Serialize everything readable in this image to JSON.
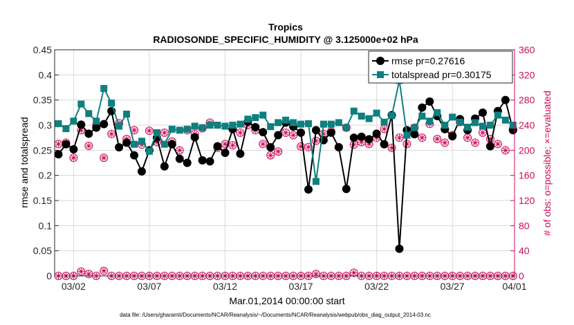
{
  "chart_data": {
    "type": "line",
    "title": "Tropics",
    "subtitle": "RADIOSONDE_SPECIFIC_HUMIDITY @ 3.125000e+02 hPa",
    "xlabel": "Mar.01,2014 00:00:00 start",
    "ylabel": "rmse and totalspread",
    "y2label": "# of obs: o=possible; ×=evaluated",
    "footnote": "data file: /Users/gharamti/Documents/NCAR/Reanalysis/~/Documents/NCAR/Reanalysis/webpub/obs_diag_output_2014-03.nc",
    "xlim": [
      0.75,
      31.1
    ],
    "ylim": [
      0,
      0.45
    ],
    "y2lim": [
      0,
      360
    ],
    "x_ticks": [
      2,
      7,
      12,
      17,
      22,
      27,
      32
    ],
    "x_tick_labels": [
      "03/02",
      "03/07",
      "03/12",
      "03/17",
      "03/22",
      "03/27",
      "04/01"
    ],
    "y_ticks": [
      0,
      0.05,
      0.1,
      0.15,
      0.2,
      0.25,
      0.3,
      0.35,
      0.4,
      0.45
    ],
    "y_tick_labels": [
      "0",
      "0.05",
      "0.1",
      "0.15",
      "0.2",
      "0.25",
      "0.3",
      "0.35",
      "0.4",
      "0.45"
    ],
    "y2_ticks": [
      0,
      40,
      80,
      120,
      160,
      200,
      240,
      280,
      320,
      360
    ],
    "y2_tick_labels": [
      "0",
      "40",
      "80",
      "120",
      "160",
      "200",
      "240",
      "280",
      "320",
      "360"
    ],
    "legend_position": "top-right",
    "colors": {
      "rmse": "#000000",
      "spread": "#0f7f7f",
      "obs": "#cc0a5a",
      "grid": "#dadada"
    },
    "series": [
      {
        "name": "rmse",
        "legend": "rmse pr=0.27616",
        "x": [
          1.0,
          1.5,
          2.0,
          2.5,
          3.0,
          3.5,
          4.0,
          4.5,
          5.0,
          5.5,
          6.0,
          6.5,
          7.0,
          7.5,
          8.0,
          8.5,
          9.0,
          9.5,
          10.0,
          10.5,
          11.0,
          11.5,
          12.0,
          12.5,
          13.0,
          13.5,
          14.0,
          14.5,
          15.0,
          15.5,
          16.0,
          16.5,
          17.0,
          17.5,
          18.0,
          18.5,
          19.0,
          19.5,
          20.0,
          20.5,
          21.0,
          21.5,
          22.0,
          22.5,
          23.0,
          23.5,
          24.0,
          24.5,
          25.0,
          25.5,
          26.0,
          26.5,
          27.0,
          27.5,
          28.0,
          28.5,
          29.0,
          29.5,
          30.0,
          30.5,
          31.0
        ],
        "values": [
          0.242,
          0.262,
          0.252,
          0.301,
          0.283,
          0.295,
          0.302,
          0.328,
          0.256,
          0.265,
          0.24,
          0.208,
          0.25,
          0.275,
          0.218,
          0.262,
          0.233,
          0.225,
          0.276,
          0.23,
          0.228,
          0.258,
          0.245,
          0.292,
          0.243,
          0.307,
          0.296,
          0.286,
          0.256,
          0.28,
          0.305,
          0.297,
          0.285,
          0.172,
          0.29,
          0.27,
          0.285,
          0.256,
          0.173,
          0.275,
          0.277,
          0.272,
          0.283,
          0.262,
          0.32,
          0.054,
          0.29,
          0.282,
          0.335,
          0.347,
          0.318,
          0.292,
          0.278,
          0.312,
          0.29,
          0.313,
          0.325,
          0.258,
          0.328,
          0.35,
          0.29
        ]
      },
      {
        "name": "totalspread",
        "legend": "totalspread pr=0.30175",
        "x": [
          1.0,
          1.5,
          2.0,
          2.5,
          3.0,
          3.5,
          4.0,
          4.5,
          5.0,
          5.5,
          6.0,
          6.5,
          7.0,
          7.5,
          8.0,
          8.5,
          9.0,
          9.5,
          10.0,
          10.5,
          11.0,
          11.5,
          12.0,
          12.5,
          13.0,
          13.5,
          14.0,
          14.5,
          15.0,
          15.5,
          16.0,
          16.5,
          17.0,
          17.5,
          18.0,
          18.5,
          19.0,
          19.5,
          20.0,
          20.5,
          21.0,
          21.5,
          22.0,
          22.5,
          23.0,
          23.5,
          24.0,
          24.5,
          25.0,
          25.5,
          26.0,
          26.5,
          27.0,
          27.5,
          28.0,
          28.5,
          29.0,
          29.5,
          30.0,
          30.5,
          31.0
        ],
        "values": [
          0.303,
          0.293,
          0.308,
          0.342,
          0.323,
          0.308,
          0.373,
          0.344,
          0.298,
          0.322,
          0.262,
          0.268,
          0.248,
          0.285,
          0.262,
          0.292,
          0.29,
          0.292,
          0.298,
          0.295,
          0.3,
          0.3,
          0.298,
          0.3,
          0.302,
          0.312,
          0.315,
          0.32,
          0.297,
          0.305,
          0.31,
          0.305,
          0.302,
          0.303,
          0.188,
          0.302,
          0.302,
          0.305,
          0.295,
          0.328,
          0.318,
          0.313,
          0.324,
          0.306,
          0.319,
          0.389,
          0.28,
          0.295,
          0.318,
          0.308,
          0.325,
          0.3,
          0.316,
          0.306,
          0.296,
          0.305,
          0.298,
          0.3,
          0.32,
          0.31,
          0.3
        ]
      },
      {
        "name": "obs_possible",
        "x": [
          1.0,
          1.5,
          2.0,
          2.5,
          3.0,
          3.5,
          4.0,
          4.5,
          5.0,
          5.5,
          6.0,
          6.5,
          7.0,
          7.5,
          8.0,
          8.5,
          9.0,
          9.5,
          10.0,
          10.5,
          11.0,
          11.5,
          12.0,
          12.5,
          13.0,
          13.5,
          14.0,
          14.5,
          15.0,
          15.5,
          16.0,
          16.5,
          17.0,
          17.5,
          18.0,
          18.5,
          19.0,
          19.5,
          20.0,
          20.5,
          21.0,
          21.5,
          22.0,
          22.5,
          23.0,
          23.5,
          24.0,
          24.5,
          25.0,
          25.5,
          26.0,
          26.5,
          27.0,
          27.5,
          28.0,
          28.5,
          29.0,
          29.5,
          30.0,
          30.5,
          31.0
        ],
        "values": [
          210,
          212,
          188,
          232,
          207,
          240,
          188,
          226,
          243,
          218,
          232,
          209,
          231,
          213,
          228,
          214,
          200,
          232,
          226,
          235,
          244,
          204,
          210,
          208,
          228,
          240,
          232,
          210,
          192,
          198,
          228,
          224,
          206,
          205,
          215,
          226,
          230,
          205,
          236,
          209,
          213,
          210,
          220,
          234,
          204,
          220,
          210,
          236,
          220,
          242,
          218,
          212,
          224,
          245,
          220,
          212,
          228,
          218,
          210,
          200,
          234
        ]
      },
      {
        "name": "obs_evaluated",
        "x": [
          1.0,
          1.5,
          2.0,
          2.5,
          3.0,
          3.5,
          4.0,
          4.5,
          5.0,
          5.5,
          6.0,
          6.5,
          7.0,
          7.5,
          8.0,
          8.5,
          9.0,
          9.5,
          10.0,
          10.5,
          11.0,
          11.5,
          12.0,
          12.5,
          13.0,
          13.5,
          14.0,
          14.5,
          15.0,
          15.5,
          16.0,
          16.5,
          17.0,
          17.5,
          18.0,
          18.5,
          19.0,
          19.5,
          20.0,
          20.5,
          21.0,
          21.5,
          22.0,
          22.5,
          23.0,
          23.5,
          24.0,
          24.5,
          25.0,
          25.5,
          26.0,
          26.5,
          27.0,
          27.5,
          28.0,
          28.5,
          29.0,
          29.5,
          30.0,
          30.5,
          31.0
        ],
        "values": [
          210,
          212,
          188,
          232,
          207,
          240,
          188,
          226,
          243,
          218,
          232,
          209,
          231,
          213,
          228,
          214,
          200,
          232,
          226,
          235,
          244,
          204,
          210,
          208,
          228,
          240,
          232,
          210,
          192,
          198,
          228,
          224,
          206,
          205,
          215,
          226,
          230,
          205,
          236,
          209,
          213,
          210,
          220,
          234,
          204,
          220,
          210,
          236,
          220,
          242,
          218,
          212,
          224,
          245,
          220,
          212,
          228,
          218,
          210,
          200,
          234
        ]
      },
      {
        "name": "obs_zero",
        "x": [
          1.0,
          1.5,
          2.0,
          2.5,
          3.0,
          3.5,
          4.0,
          4.5,
          5.0,
          5.5,
          6.0,
          6.5,
          7.0,
          7.5,
          8.0,
          8.5,
          9.0,
          9.5,
          10.0,
          10.5,
          11.0,
          11.5,
          12.0,
          12.5,
          13.0,
          13.5,
          14.0,
          14.5,
          15.0,
          15.5,
          16.0,
          16.5,
          17.0,
          17.5,
          18.0,
          18.5,
          19.0,
          19.5,
          20.0,
          20.5,
          21.0,
          21.5,
          22.0,
          22.5,
          23.0,
          23.5,
          24.0,
          24.5,
          25.0,
          25.5,
          26.0,
          26.5,
          27.0,
          27.5,
          28.0,
          28.5,
          29.0,
          29.5,
          30.0,
          30.5,
          31.0
        ],
        "values": [
          0,
          0,
          0,
          7,
          3,
          0,
          8,
          0,
          0,
          0,
          0,
          0,
          0,
          0,
          0,
          0,
          0,
          0,
          0,
          0,
          0,
          0,
          0,
          0,
          0,
          0,
          0,
          0,
          0,
          0,
          0,
          0,
          0,
          0,
          3,
          0,
          0,
          0,
          0,
          5,
          0,
          0,
          0,
          0,
          0,
          0,
          0,
          0,
          0,
          0,
          0,
          0,
          0,
          0,
          0,
          0,
          0,
          0,
          0,
          0,
          0
        ]
      }
    ]
  }
}
